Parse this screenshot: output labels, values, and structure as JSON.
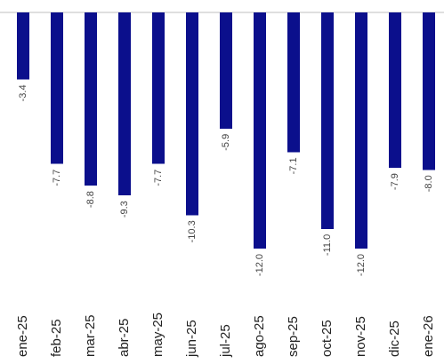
{
  "chart_data": {
    "type": "bar",
    "categories": [
      "ene-25",
      "feb-25",
      "mar-25",
      "abr-25",
      "may-25",
      "jun-25",
      "jul-25",
      "ago-25",
      "sep-25",
      "oct-25",
      "nov-25",
      "dic-25",
      "ene-26"
    ],
    "values": [
      -3.4,
      -7.7,
      -8.8,
      -9.3,
      -7.7,
      -10.3,
      -5.9,
      -12.0,
      -7.1,
      -11.0,
      -12.0,
      -7.9,
      -8.0
    ],
    "data_labels": [
      "-3.4",
      "-7.7",
      "-8.8",
      "-9.3",
      "-7.7",
      "-10.3",
      "-5.9",
      "-12.0",
      "-7.1",
      "-11.0",
      "-12.0",
      "-7.9",
      "-8.0"
    ],
    "ylim": [
      -12.0,
      0
    ],
    "grid": false,
    "colors": {
      "bar": "#0b0f8c",
      "axis": "#bfbfbf",
      "label": "#444444",
      "tick": "#222222"
    }
  }
}
